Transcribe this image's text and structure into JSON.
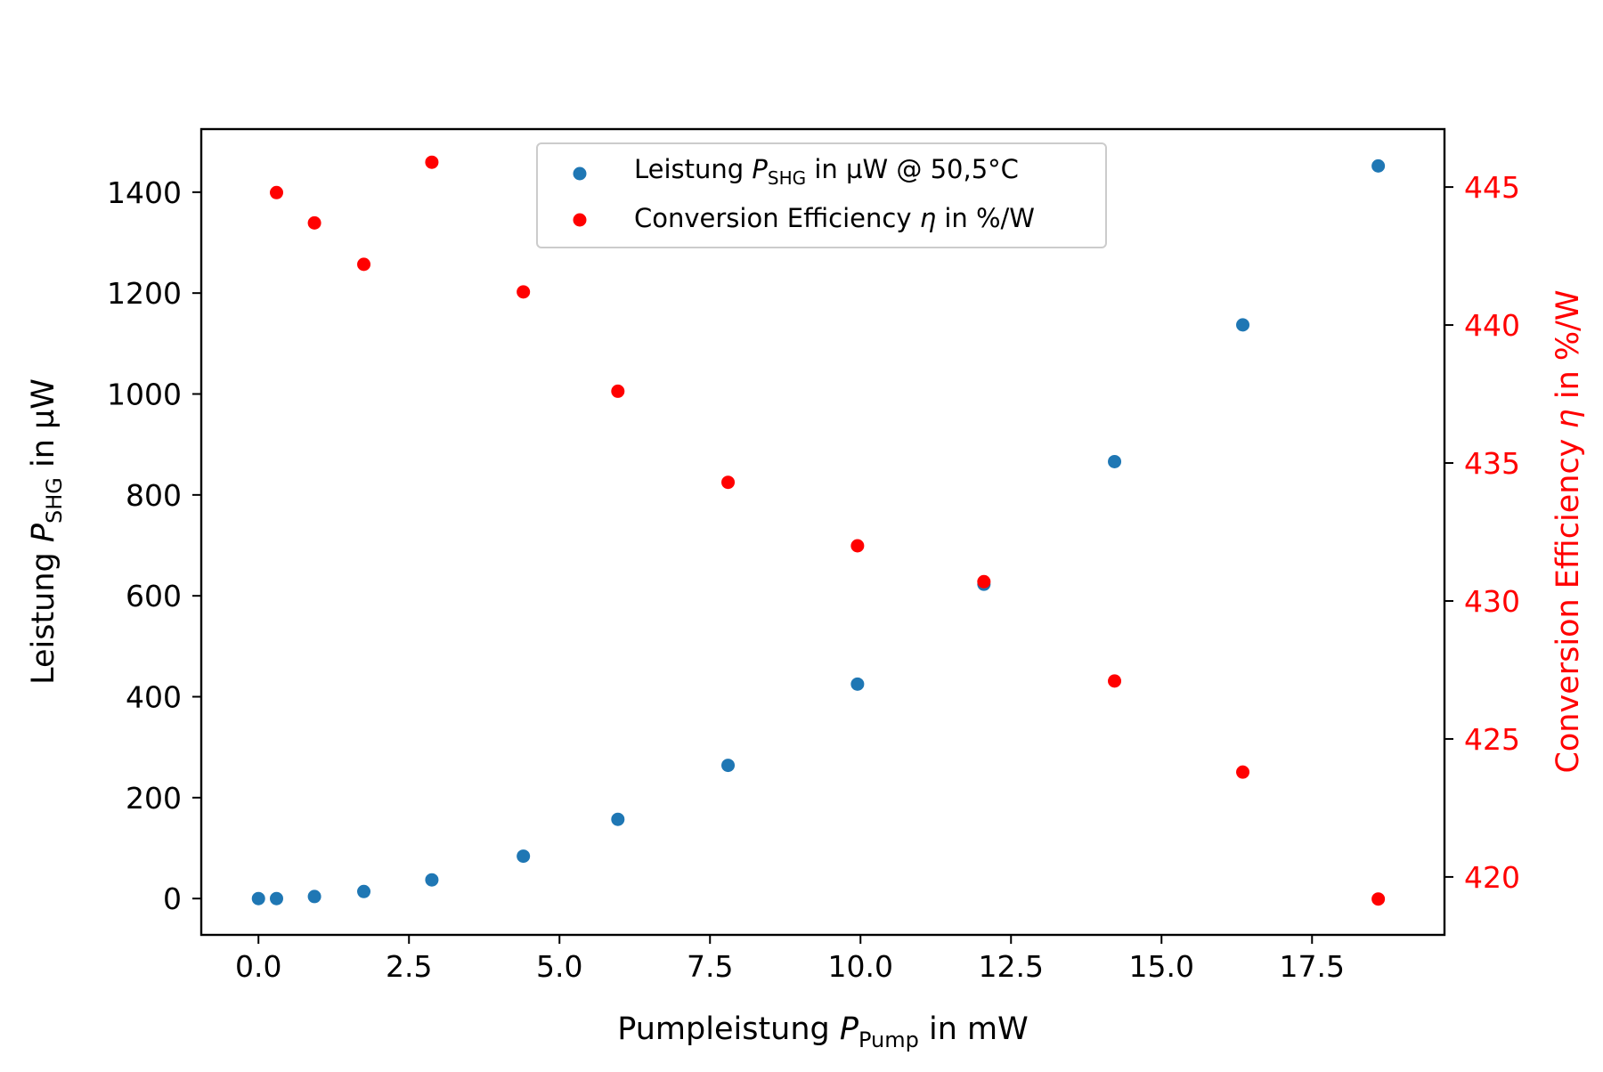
{
  "chart_data": {
    "type": "scatter",
    "x": [
      0.0,
      0.3,
      0.93,
      1.75,
      2.88,
      4.4,
      5.97,
      7.8,
      9.95,
      12.05,
      14.22,
      16.35,
      18.6
    ],
    "xlim": [
      -0.95,
      19.7
    ],
    "xticks": [
      "0.0",
      "2.5",
      "5.0",
      "7.5",
      "10.0",
      "12.5",
      "15.0",
      "17.5"
    ],
    "xtick_values": [
      0,
      2.5,
      5,
      7.5,
      10,
      12.5,
      15,
      17.5
    ],
    "xlabel": {
      "main": "Pumpleistung ",
      "var": "P",
      "sub": "Pump",
      "rest": " in mW"
    },
    "left_axis": {
      "ylabel": {
        "main": "Leistung ",
        "var": "P",
        "sub": "SHG",
        "rest": " in µW"
      },
      "ylim": [
        -72,
        1525
      ],
      "ticks": [
        "0",
        "200",
        "400",
        "600",
        "800",
        "1000",
        "1200",
        "1400"
      ],
      "tick_values": [
        0,
        200,
        400,
        600,
        800,
        1000,
        1200,
        1400
      ]
    },
    "right_axis": {
      "ylabel": {
        "main": "Conversion Efficiency ",
        "var": "η",
        "rest": " in %/W"
      },
      "ylim": [
        417.9,
        447.1
      ],
      "ticks": [
        "420",
        "425",
        "430",
        "435",
        "440",
        "445"
      ],
      "tick_values": [
        420,
        425,
        430,
        435,
        440,
        445
      ],
      "color": "#ff0000"
    },
    "series": [
      {
        "axis": "left",
        "color": "#1f77b4",
        "legend": {
          "main": "Leistung ",
          "var": "P",
          "sub": "SHG",
          "rest": " in µW @ 50,5°C"
        },
        "values": [
          0,
          0,
          4,
          14,
          37,
          84,
          157,
          264,
          425,
          623,
          866,
          1137,
          1452
        ]
      },
      {
        "axis": "right",
        "color": "#ff0000",
        "legend": {
          "main": "Conversion Efficiency ",
          "var": "η",
          "rest": " in %/W"
        },
        "values": [
          null,
          444.8,
          443.7,
          442.2,
          445.9,
          441.2,
          437.6,
          434.3,
          432.0,
          430.7,
          427.1,
          423.8,
          419.2
        ]
      }
    ],
    "legend_position": "upper center",
    "grid": false
  }
}
